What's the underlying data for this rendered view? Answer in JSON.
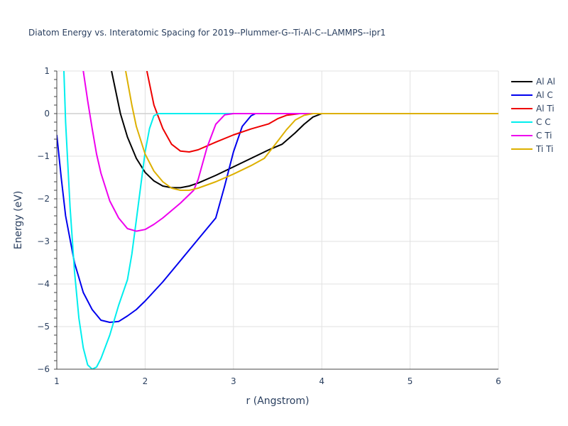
{
  "chart_data": {
    "type": "line",
    "title": "Diatom Energy vs. Interatomic Spacing for 2019--Plummer-G--Ti-Al-C--LAMMPS--ipr1",
    "xlabel": "r (Angstrom)",
    "ylabel": "Energy (eV)",
    "xlim": [
      1,
      6
    ],
    "ylim": [
      -6,
      1
    ],
    "xticks": [
      "1",
      "2",
      "3",
      "4",
      "5",
      "6"
    ],
    "yticks": [
      "1",
      "0",
      "−1",
      "−2",
      "−3",
      "−4",
      "−5",
      "−6"
    ],
    "grid": true,
    "legend_position": "top-right",
    "series": [
      {
        "name": "Al Al",
        "color": "#000000",
        "x": [
          1.62,
          1.66,
          1.72,
          1.8,
          1.9,
          2.0,
          2.1,
          2.2,
          2.3,
          2.4,
          2.5,
          2.6,
          2.8,
          3.0,
          3.2,
          3.4,
          3.55,
          3.7,
          3.8,
          3.9,
          4.0,
          6.0
        ],
        "y": [
          1.0,
          0.6,
          0.0,
          -0.55,
          -1.05,
          -1.38,
          -1.58,
          -1.7,
          -1.74,
          -1.74,
          -1.7,
          -1.63,
          -1.45,
          -1.25,
          -1.05,
          -0.85,
          -0.72,
          -0.45,
          -0.25,
          -0.08,
          0.0,
          0.0
        ]
      },
      {
        "name": "Al C",
        "color": "#0000ee",
        "x": [
          1.0,
          1.05,
          1.1,
          1.2,
          1.3,
          1.4,
          1.5,
          1.6,
          1.7,
          1.8,
          1.9,
          2.0,
          2.2,
          2.4,
          2.6,
          2.8,
          2.9,
          3.0,
          3.1,
          3.2,
          3.25,
          6.0
        ],
        "y": [
          -0.5,
          -1.5,
          -2.4,
          -3.5,
          -4.2,
          -4.6,
          -4.85,
          -4.9,
          -4.88,
          -4.75,
          -4.6,
          -4.4,
          -3.95,
          -3.45,
          -2.95,
          -2.45,
          -1.7,
          -0.9,
          -0.3,
          -0.05,
          0.0,
          0.0
        ]
      },
      {
        "name": "Al Ti",
        "color": "#ee0000",
        "x": [
          2.02,
          2.1,
          2.2,
          2.3,
          2.4,
          2.5,
          2.6,
          2.8,
          3.0,
          3.2,
          3.4,
          3.5,
          3.6,
          3.75,
          6.0
        ],
        "y": [
          1.0,
          0.2,
          -0.35,
          -0.72,
          -0.88,
          -0.9,
          -0.85,
          -0.67,
          -0.5,
          -0.36,
          -0.24,
          -0.12,
          -0.04,
          0.0,
          0.0
        ]
      },
      {
        "name": "C C",
        "color": "#00eeee",
        "x": [
          1.08,
          1.1,
          1.15,
          1.2,
          1.25,
          1.3,
          1.35,
          1.4,
          1.45,
          1.5,
          1.6,
          1.7,
          1.8,
          1.85,
          1.9,
          1.95,
          2.0,
          2.05,
          2.1,
          2.15,
          6.0
        ],
        "y": [
          1.0,
          -0.2,
          -2.2,
          -3.7,
          -4.8,
          -5.5,
          -5.9,
          -6.0,
          -5.95,
          -5.75,
          -5.2,
          -4.5,
          -3.9,
          -3.3,
          -2.5,
          -1.7,
          -0.9,
          -0.35,
          -0.05,
          0.0,
          0.0
        ]
      },
      {
        "name": "C Ti",
        "color": "#ee00ee",
        "x": [
          1.3,
          1.35,
          1.4,
          1.45,
          1.5,
          1.6,
          1.7,
          1.8,
          1.9,
          2.0,
          2.1,
          2.2,
          2.4,
          2.55,
          2.6,
          2.7,
          2.8,
          2.9,
          3.0,
          6.0
        ],
        "y": [
          1.0,
          0.3,
          -0.35,
          -0.95,
          -1.4,
          -2.05,
          -2.45,
          -2.7,
          -2.76,
          -2.72,
          -2.6,
          -2.45,
          -2.1,
          -1.8,
          -1.55,
          -0.8,
          -0.25,
          -0.03,
          0.0,
          0.0
        ]
      },
      {
        "name": "Ti Ti",
        "color": "#ddb000",
        "x": [
          1.78,
          1.85,
          1.9,
          2.0,
          2.1,
          2.2,
          2.3,
          2.4,
          2.5,
          2.6,
          2.8,
          3.0,
          3.2,
          3.35,
          3.5,
          3.6,
          3.7,
          3.8,
          3.9,
          4.0,
          6.0
        ],
        "y": [
          1.0,
          0.2,
          -0.3,
          -0.95,
          -1.35,
          -1.6,
          -1.75,
          -1.8,
          -1.8,
          -1.75,
          -1.6,
          -1.42,
          -1.22,
          -1.05,
          -0.65,
          -0.38,
          -0.15,
          -0.04,
          0.0,
          0.0,
          0.0
        ]
      }
    ]
  }
}
